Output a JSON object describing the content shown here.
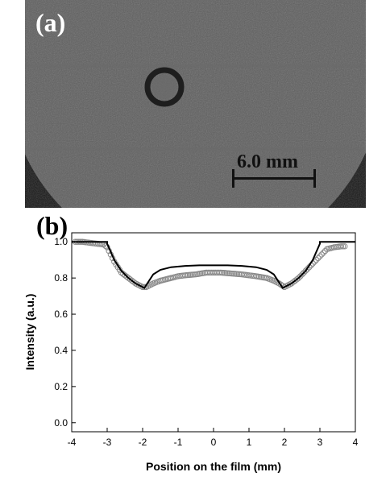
{
  "panel_a": {
    "label": "(a)",
    "scale_bar_label": "6.0 mm"
  },
  "panel_b": {
    "label": "(b)"
  },
  "chart_data": {
    "type": "line",
    "xlabel": "Position on the film (mm)",
    "ylabel": "Intensity (a.u.)",
    "xlim": [
      -4,
      4
    ],
    "ylim": [
      -0.05,
      1.05
    ],
    "xticks": [
      -4,
      -3,
      -2,
      -1,
      0,
      1,
      2,
      3,
      4
    ],
    "xtick_labels": [
      "-4",
      "-3",
      "-2",
      "-1",
      "0",
      "1",
      "2",
      "3",
      "4"
    ],
    "yticks": [
      0.0,
      0.2,
      0.4,
      0.6,
      0.8,
      1.0
    ],
    "ytick_labels": [
      "0.0",
      "0.2",
      "0.4",
      "0.6",
      "0.8",
      "1.0"
    ],
    "series": [
      {
        "style": "open-circles-gray",
        "x": [
          -3.9,
          -3.7,
          -3.5,
          -3.3,
          -3.1,
          -3.0,
          -2.8,
          -2.6,
          -2.4,
          -2.2,
          -2.0,
          -1.9,
          -1.7,
          -1.5,
          -1.2,
          -1.0,
          -0.8,
          -0.5,
          -0.2,
          0.0,
          0.2,
          0.5,
          0.8,
          1.0,
          1.2,
          1.5,
          1.7,
          1.85,
          2.0,
          2.2,
          2.4,
          2.6,
          2.8,
          3.0,
          3.2,
          3.4,
          3.6,
          3.75
        ],
        "y": [
          1.0,
          1.0,
          0.995,
          0.99,
          0.985,
          0.97,
          0.89,
          0.83,
          0.8,
          0.77,
          0.75,
          0.75,
          0.77,
          0.785,
          0.8,
          0.81,
          0.815,
          0.82,
          0.83,
          0.83,
          0.83,
          0.825,
          0.82,
          0.815,
          0.81,
          0.8,
          0.785,
          0.77,
          0.75,
          0.77,
          0.8,
          0.84,
          0.88,
          0.92,
          0.96,
          0.97,
          0.975,
          0.975
        ]
      },
      {
        "style": "solid-black",
        "x": [
          -4.0,
          -3.0,
          -3.0,
          -2.8,
          -2.6,
          -2.4,
          -2.2,
          -1.95,
          -1.9,
          -1.7,
          -1.5,
          -1.2,
          -0.8,
          -0.4,
          0.0,
          0.4,
          0.8,
          1.2,
          1.5,
          1.7,
          1.9,
          1.95,
          2.2,
          2.4,
          2.6,
          2.8,
          3.0,
          3.0,
          4.0
        ],
        "y": [
          1.0,
          1.0,
          0.99,
          0.9,
          0.84,
          0.8,
          0.77,
          0.745,
          0.76,
          0.82,
          0.845,
          0.86,
          0.867,
          0.87,
          0.87,
          0.87,
          0.867,
          0.86,
          0.845,
          0.82,
          0.76,
          0.745,
          0.77,
          0.8,
          0.84,
          0.9,
          0.99,
          1.0,
          1.0
        ]
      }
    ]
  }
}
